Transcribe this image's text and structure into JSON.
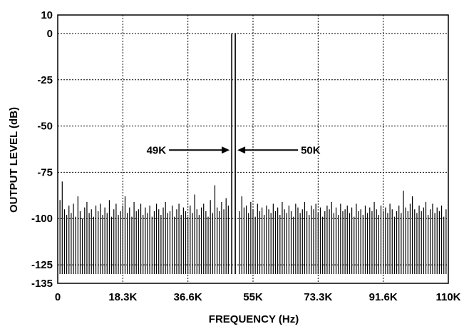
{
  "chart_data": {
    "type": "bar",
    "title": "",
    "xlabel": "FREQUENCY (Hz)",
    "ylabel": "OUTPUT LEVEL (dB)",
    "xlim": [
      0,
      110000
    ],
    "ylim": [
      -135,
      10
    ],
    "grid": true,
    "x_ticks": [
      {
        "value": 0,
        "label": "0"
      },
      {
        "value": 18333,
        "label": "18.3K"
      },
      {
        "value": 36667,
        "label": "36.6K"
      },
      {
        "value": 55000,
        "label": "55K"
      },
      {
        "value": 73333,
        "label": "73.3K"
      },
      {
        "value": 91667,
        "label": "91.6K"
      },
      {
        "value": 110000,
        "label": "110K"
      }
    ],
    "y_ticks": [
      {
        "value": 10,
        "label": "10"
      },
      {
        "value": 0,
        "label": "0"
      },
      {
        "value": -25,
        "label": "-25"
      },
      {
        "value": -50,
        "label": "-50"
      },
      {
        "value": -75,
        "label": "-75"
      },
      {
        "value": -100,
        "label": "-100"
      },
      {
        "value": -125,
        "label": "-125"
      },
      {
        "value": -135,
        "label": "-135"
      }
    ],
    "tones": [
      {
        "x": 49000,
        "y": 0,
        "label": "49K"
      },
      {
        "x": 50000,
        "y": 0,
        "label": "50K"
      }
    ],
    "noise_floor": -130,
    "noise_spurs_db": [
      -90,
      -80,
      -95,
      -98,
      -93,
      -97,
      -92,
      -99,
      -88,
      -96,
      -100,
      -94,
      -91,
      -97,
      -95,
      -99,
      -93,
      -96,
      -92,
      -98,
      -94,
      -97,
      -90,
      -99,
      -95,
      -92,
      -98,
      -96,
      -93,
      -88,
      -97,
      -94,
      -99,
      -91,
      -96,
      -95,
      -92,
      -98,
      -94,
      -97,
      -93,
      -99,
      -96,
      -92,
      -95,
      -98,
      -94,
      -91,
      -97,
      -96,
      -93,
      -99,
      -95,
      -92,
      -98,
      -94,
      -96,
      -99,
      -93,
      -97,
      -87,
      -95,
      -98,
      -94,
      -92,
      -96,
      -99,
      -90,
      -97,
      -82,
      -94,
      -96,
      -91,
      -95,
      -89,
      -93,
      -90,
      -97,
      -92,
      -95,
      -96,
      -88,
      -94,
      -93,
      -97,
      -91,
      -95,
      -99,
      -92,
      -96,
      -94,
      -98,
      -93,
      -95,
      -97,
      -92,
      -96,
      -94,
      -98,
      -91,
      -95,
      -97,
      -93,
      -96,
      -99,
      -92,
      -94,
      -97,
      -95,
      -91,
      -96,
      -98,
      -93,
      -95,
      -92,
      -97,
      -94,
      -99,
      -96,
      -93,
      -95,
      -91,
      -97,
      -94,
      -98,
      -92,
      -96,
      -95,
      -93,
      -97,
      -94,
      -99,
      -92,
      -96,
      -95,
      -98,
      -93,
      -97,
      -94,
      -96,
      -91,
      -95,
      -98,
      -93,
      -96,
      -94,
      -97,
      -92,
      -95,
      -99,
      -96,
      -93,
      -97,
      -85,
      -94,
      -96,
      -92,
      -88,
      -95,
      -97,
      -93,
      -96,
      -94,
      -91,
      -98,
      -95,
      -92,
      -97,
      -94,
      -96,
      -93,
      -99,
      -95
    ]
  }
}
